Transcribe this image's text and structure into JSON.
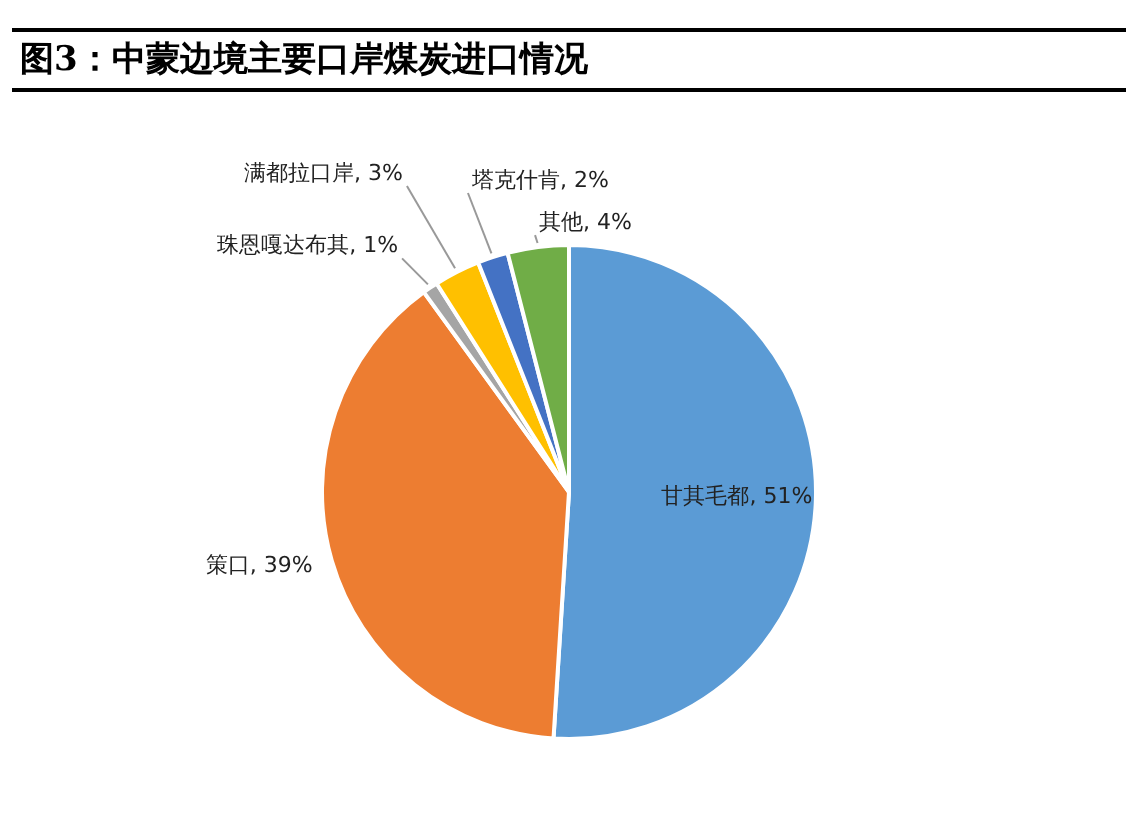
{
  "chart_data": {
    "type": "pie",
    "title": "图3：中蒙边境主要口岸煤炭进口情况",
    "categories": [
      "甘其毛都",
      "策口",
      "珠恩嘎达布其",
      "满都拉口岸",
      "塔克什肯",
      "其他"
    ],
    "values": [
      51,
      39,
      1,
      3,
      2,
      4
    ],
    "value_labels": [
      "51%",
      "39%",
      "1%",
      "3%",
      "2%",
      "4%"
    ],
    "colors": [
      "#5b9bd5",
      "#ed7d31",
      "#a5a5a5",
      "#ffc000",
      "#4472c4",
      "#70ad47"
    ],
    "legend": false
  }
}
